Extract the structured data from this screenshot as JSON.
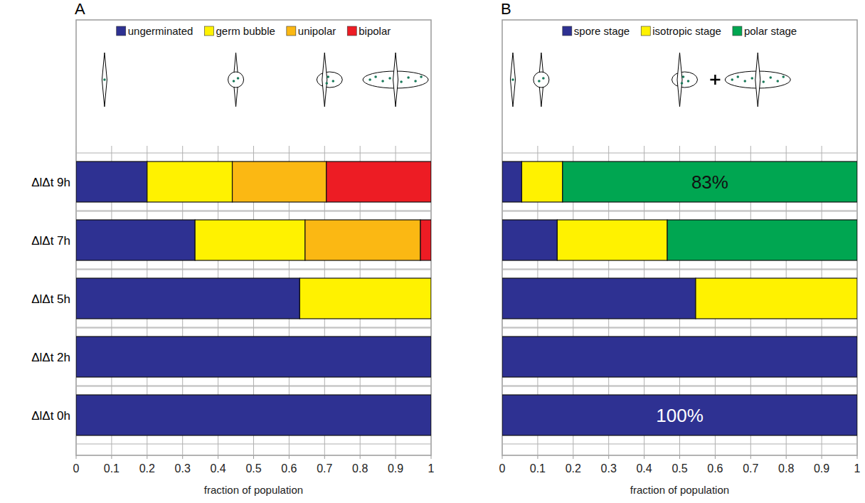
{
  "chart_data": [
    {
      "type": "bar",
      "orientation": "horizontal",
      "stacked": true,
      "title": "A",
      "xlabel": "fraction of population",
      "categories": [
        "ΔlΔt 9h",
        "ΔlΔt 7h",
        "ΔlΔt 5h",
        "ΔlΔt 2h",
        "ΔlΔt 0h"
      ],
      "series": [
        {
          "name": "ungerminated",
          "color": "#2e3192",
          "values": [
            0.2,
            0.335,
            0.63,
            1,
            1
          ]
        },
        {
          "name": "germ bubble",
          "color": "#fff200",
          "values": [
            0.24,
            0.31,
            0.37,
            0,
            0
          ]
        },
        {
          "name": "unipolar",
          "color": "#fbb813",
          "values": [
            0.265,
            0.325,
            0,
            0,
            0
          ]
        },
        {
          "name": "bipolar",
          "color": "#ed1c24",
          "values": [
            0.295,
            0.03,
            0,
            0,
            0
          ]
        }
      ],
      "xlim": [
        0,
        1
      ],
      "xticks": [
        0,
        0.1,
        0.2,
        0.3,
        0.4,
        0.5,
        0.6,
        0.7,
        0.8,
        0.9,
        1
      ],
      "grid": true,
      "legend": "top"
    },
    {
      "type": "bar",
      "orientation": "horizontal",
      "stacked": true,
      "title": "B",
      "xlabel": "fraction of population",
      "categories": [
        null,
        null,
        null,
        null,
        null
      ],
      "series": [
        {
          "name": "spore stage",
          "color": "#2e3192",
          "values": [
            0.055,
            0.155,
            0.545,
            1,
            1
          ],
          "value_labels": [
            null,
            null,
            null,
            null,
            "100%"
          ]
        },
        {
          "name": "isotropic stage",
          "color": "#fff200",
          "values": [
            0.115,
            0.31,
            0.455,
            0,
            0
          ],
          "value_labels": [
            null,
            null,
            null,
            null,
            null
          ]
        },
        {
          "name": "polar stage",
          "color": "#00a651",
          "values": [
            0.83,
            0.535,
            0,
            0,
            0
          ],
          "value_labels": [
            "83%",
            null,
            null,
            null,
            null
          ]
        }
      ],
      "xlim": [
        0,
        1
      ],
      "xticks": [
        0,
        0.1,
        0.2,
        0.3,
        0.4,
        0.5,
        0.6,
        0.7,
        0.8,
        0.9,
        1
      ],
      "grid": true,
      "legend": "top",
      "data_labels": true,
      "tick_labels": "x"
    }
  ]
}
